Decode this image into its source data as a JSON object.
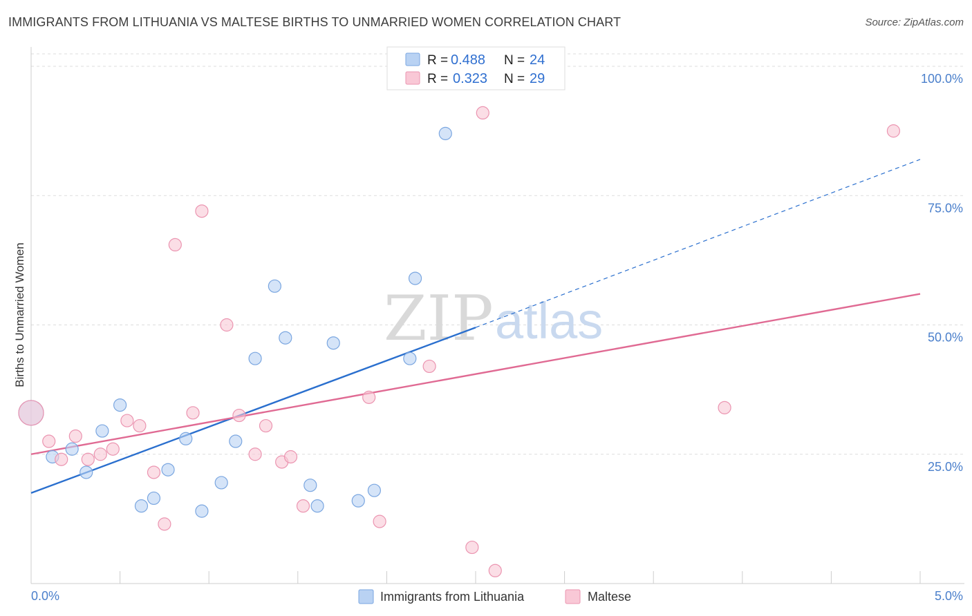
{
  "header": {
    "title": "IMMIGRANTS FROM LITHUANIA VS MALTESE BIRTHS TO UNMARRIED WOMEN CORRELATION CHART",
    "source": "Source: ZipAtlas.com"
  },
  "watermark": {
    "zip": "ZIP",
    "atlas": "atlas"
  },
  "colors": {
    "blue_fill": "#b9d2f3",
    "blue_stroke": "#7aa6e0",
    "blue_line": "#2a6fce",
    "pink_fill": "#f9c8d6",
    "pink_stroke": "#eb94b0",
    "pink_line": "#e06a93",
    "grid": "#dddddd",
    "tick_label": "#4a7fcb"
  },
  "legend": {
    "rows": [
      {
        "r_label": "R =",
        "r_value": "0.488",
        "n_label": "N =",
        "n_value": "24"
      },
      {
        "r_label": "R =",
        "r_value": "0.323",
        "n_label": "N =",
        "n_value": "29"
      }
    ]
  },
  "chart_data": {
    "type": "scatter",
    "title": "IMMIGRANTS FROM LITHUANIA VS MALTESE BIRTHS TO UNMARRIED WOMEN CORRELATION CHART",
    "xlabel": "",
    "ylabel": "Births to Unmarried Women",
    "xlim": [
      0,
      5
    ],
    "ylim": [
      0,
      100
    ],
    "x_tick_labels": [
      "0.0%",
      "5.0%"
    ],
    "y_ticks": [
      25,
      50,
      75,
      100
    ],
    "y_tick_labels": [
      "25.0%",
      "50.0%",
      "75.0%",
      "100.0%"
    ],
    "grid": true,
    "legend_position": "top-center",
    "series": [
      {
        "name": "Immigrants from Lithuania",
        "color": "#b9d2f3",
        "points": [
          [
            0.0,
            33.0
          ],
          [
            0.12,
            24.5
          ],
          [
            0.23,
            26.0
          ],
          [
            0.31,
            21.5
          ],
          [
            0.4,
            29.5
          ],
          [
            0.5,
            34.5
          ],
          [
            0.62,
            15.0
          ],
          [
            0.69,
            16.5
          ],
          [
            0.77,
            22.0
          ],
          [
            0.87,
            28.0
          ],
          [
            0.96,
            14.0
          ],
          [
            1.07,
            19.5
          ],
          [
            1.15,
            27.5
          ],
          [
            1.26,
            43.5
          ],
          [
            1.37,
            57.5
          ],
          [
            1.43,
            47.5
          ],
          [
            1.57,
            19.0
          ],
          [
            1.61,
            15.0
          ],
          [
            1.7,
            46.5
          ],
          [
            1.84,
            16.0
          ],
          [
            1.93,
            18.0
          ],
          [
            2.13,
            43.5
          ],
          [
            2.16,
            59.0
          ],
          [
            2.33,
            87.0
          ]
        ],
        "trend": {
          "x0": 0.0,
          "y0": 17.5,
          "x1": 2.5,
          "y1": 49.5,
          "dashed_to_x": 5.0,
          "dashed_to_y": 82.0
        }
      },
      {
        "name": "Maltese",
        "color": "#f9c8d6",
        "points": [
          [
            0.0,
            33.0
          ],
          [
            0.1,
            27.5
          ],
          [
            0.17,
            24.0
          ],
          [
            0.25,
            28.5
          ],
          [
            0.32,
            24.0
          ],
          [
            0.39,
            25.0
          ],
          [
            0.46,
            26.0
          ],
          [
            0.54,
            31.5
          ],
          [
            0.61,
            30.5
          ],
          [
            0.69,
            21.5
          ],
          [
            0.75,
            11.5
          ],
          [
            0.81,
            65.5
          ],
          [
            0.91,
            33.0
          ],
          [
            0.96,
            72.0
          ],
          [
            1.1,
            50.0
          ],
          [
            1.17,
            32.5
          ],
          [
            1.26,
            25.0
          ],
          [
            1.32,
            30.5
          ],
          [
            1.41,
            23.5
          ],
          [
            1.46,
            24.5
          ],
          [
            1.53,
            15.0
          ],
          [
            1.9,
            36.0
          ],
          [
            1.96,
            12.0
          ],
          [
            2.24,
            42.0
          ],
          [
            2.48,
            7.0
          ],
          [
            2.54,
            91.0
          ],
          [
            2.61,
            2.5
          ],
          [
            3.9,
            34.0
          ],
          [
            4.85,
            87.5
          ]
        ],
        "trend": {
          "x0": 0.0,
          "y0": 25.0,
          "x1": 5.0,
          "y1": 56.0
        }
      }
    ]
  }
}
